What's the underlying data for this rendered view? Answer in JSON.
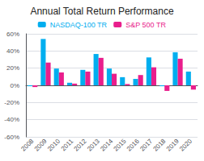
{
  "chart_data": {
    "type": "bar",
    "title": "Annual Total Return Performance",
    "categories": [
      "2008",
      "2009",
      "2010",
      "2011",
      "2012",
      "2013",
      "2014",
      "2015",
      "2016",
      "2017",
      "2018",
      "2019",
      "2020"
    ],
    "series": [
      {
        "name": "NASDAQ-100 TR",
        "color": "#00AEEF",
        "values": [
          -1.0,
          54.0,
          19.5,
          3.0,
          18.0,
          36.5,
          19.5,
          9.5,
          7.5,
          32.5,
          -1.0,
          38.5,
          16.0
        ]
      },
      {
        "name": "S&P 500 TR",
        "color": "#E91E8C",
        "values": [
          -2.0,
          26.5,
          15.0,
          2.0,
          16.0,
          32.0,
          13.5,
          1.5,
          12.0,
          21.0,
          -6.5,
          31.0,
          -5.0
        ]
      }
    ],
    "ylim": [
      -60,
      60
    ],
    "yticks": [
      {
        "value": -60,
        "label": "-60%"
      },
      {
        "value": -40,
        "label": "-40%"
      },
      {
        "value": -20,
        "label": "-20%"
      },
      {
        "value": 0,
        "label": "0%"
      },
      {
        "value": 20,
        "label": "20%"
      },
      {
        "value": 40,
        "label": "40%"
      },
      {
        "value": 60,
        "label": "60%"
      }
    ],
    "grid": true,
    "legend": "top"
  }
}
